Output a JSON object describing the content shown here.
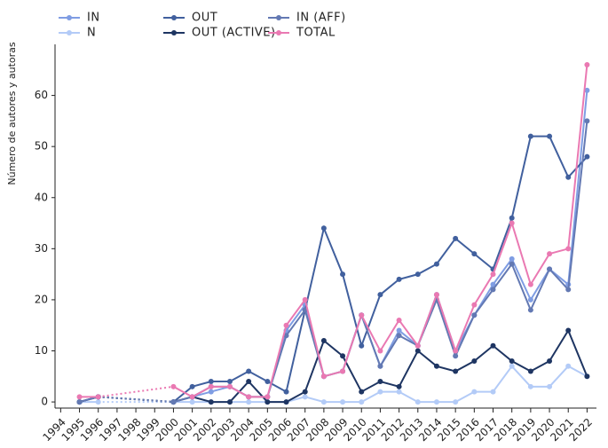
{
  "chart_data": {
    "type": "line",
    "y_label": "Número de autores y autoras",
    "x": [
      1994,
      1995,
      1996,
      1997,
      1998,
      1999,
      2000,
      2001,
      2002,
      2003,
      2004,
      2005,
      2006,
      2007,
      2008,
      2009,
      2010,
      2011,
      2012,
      2013,
      2014,
      2015,
      2016,
      2017,
      2018,
      2019,
      2020,
      2021,
      2022
    ],
    "xlim": [
      1993.7,
      2022.5
    ],
    "ylim": [
      -1.2,
      70
    ],
    "yticks": [
      0,
      10,
      20,
      30,
      40,
      50,
      60
    ],
    "grid": false,
    "legend": "top",
    "series": [
      {
        "name": "IN",
        "color": "#7f9de3",
        "values": [
          null,
          0,
          1,
          null,
          null,
          null,
          0,
          1,
          2,
          3,
          1,
          1,
          14,
          19,
          5,
          6,
          17,
          7,
          14,
          11,
          21,
          10,
          17,
          23,
          28,
          20,
          26,
          23,
          61
        ]
      },
      {
        "name": "N",
        "color": "#b3cbf7",
        "values": [
          null,
          0,
          0,
          null,
          null,
          null,
          0,
          0,
          0,
          0,
          0,
          0,
          0,
          1,
          0,
          0,
          0,
          2,
          2,
          0,
          0,
          0,
          2,
          2,
          7,
          3,
          3,
          7,
          5
        ]
      },
      {
        "name": "OUT",
        "color": "#41609e",
        "values": [
          null,
          0,
          1,
          null,
          null,
          null,
          0,
          3,
          4,
          4,
          6,
          4,
          2,
          18,
          34,
          25,
          11,
          21,
          24,
          25,
          27,
          32,
          29,
          26,
          36,
          52,
          52,
          44,
          48
        ]
      },
      {
        "name": "OUT (ACTIVE)",
        "color": "#1e3562",
        "values": [
          null,
          0,
          1,
          null,
          null,
          null,
          0,
          1,
          0,
          0,
          4,
          0,
          0,
          2,
          12,
          9,
          2,
          4,
          3,
          10,
          7,
          6,
          8,
          11,
          8,
          6,
          8,
          14,
          5
        ]
      },
      {
        "name": "IN (AFF)",
        "color": "#6379b3",
        "values": [
          null,
          0,
          1,
          null,
          null,
          null,
          0,
          1,
          3,
          3,
          1,
          1,
          13,
          18,
          5,
          6,
          17,
          7,
          13,
          11,
          20,
          9,
          17,
          22,
          27,
          18,
          26,
          22,
          55
        ]
      },
      {
        "name": "TOTAL",
        "color": "#ea79b2",
        "values": [
          null,
          1,
          1,
          null,
          null,
          null,
          3,
          1,
          3,
          3,
          1,
          1,
          15,
          20,
          5,
          6,
          17,
          10,
          16,
          11,
          21,
          10,
          19,
          25,
          35,
          23,
          29,
          30,
          66
        ]
      }
    ]
  }
}
